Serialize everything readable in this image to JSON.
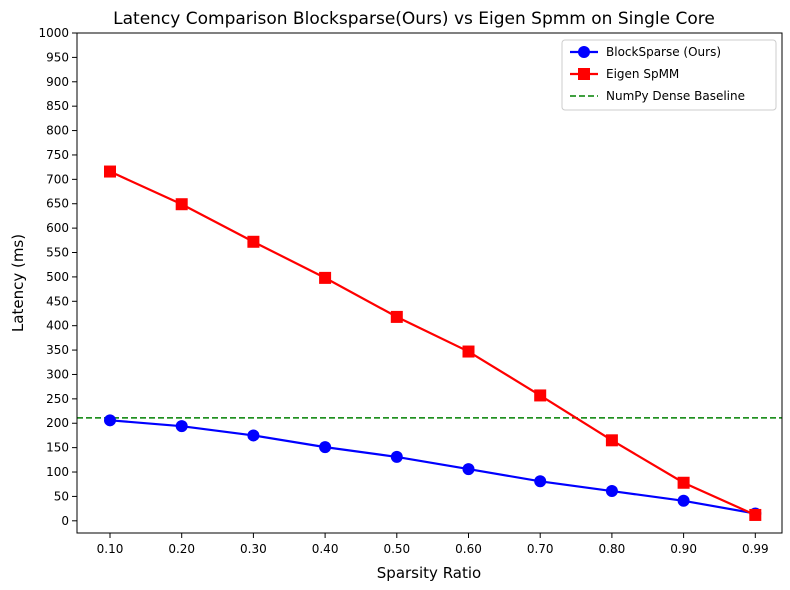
{
  "chart_data": {
    "type": "line",
    "title": "Latency Comparison Blocksparse(Ours) vs Eigen Spmm on Single Core",
    "xlabel": "Sparsity Ratio",
    "ylabel": "Latency (ms)",
    "categories": [
      "0.10",
      "0.20",
      "0.30",
      "0.40",
      "0.50",
      "0.60",
      "0.70",
      "0.80",
      "0.90",
      "0.99"
    ],
    "ylim": [
      -25,
      1000
    ],
    "yticks": [
      0,
      50,
      100,
      150,
      200,
      250,
      300,
      350,
      400,
      450,
      500,
      550,
      600,
      650,
      700,
      750,
      800,
      850,
      900,
      950,
      1000
    ],
    "grid": false,
    "legend_position": "top-right",
    "series": [
      {
        "name": "BlockSparse (Ours)",
        "color": "#0000ff",
        "marker": "circle",
        "values": [
          206,
          194,
          175,
          151,
          131,
          106,
          81,
          61,
          41,
          15
        ]
      },
      {
        "name": "Eigen SpMM",
        "color": "#ff0000",
        "marker": "square",
        "values": [
          716,
          649,
          572,
          498,
          418,
          347,
          257,
          165,
          78,
          12
        ]
      }
    ],
    "baselines": [
      {
        "name": "NumPy Dense Baseline",
        "color": "#008000",
        "style": "dashed",
        "value": 211
      }
    ]
  }
}
